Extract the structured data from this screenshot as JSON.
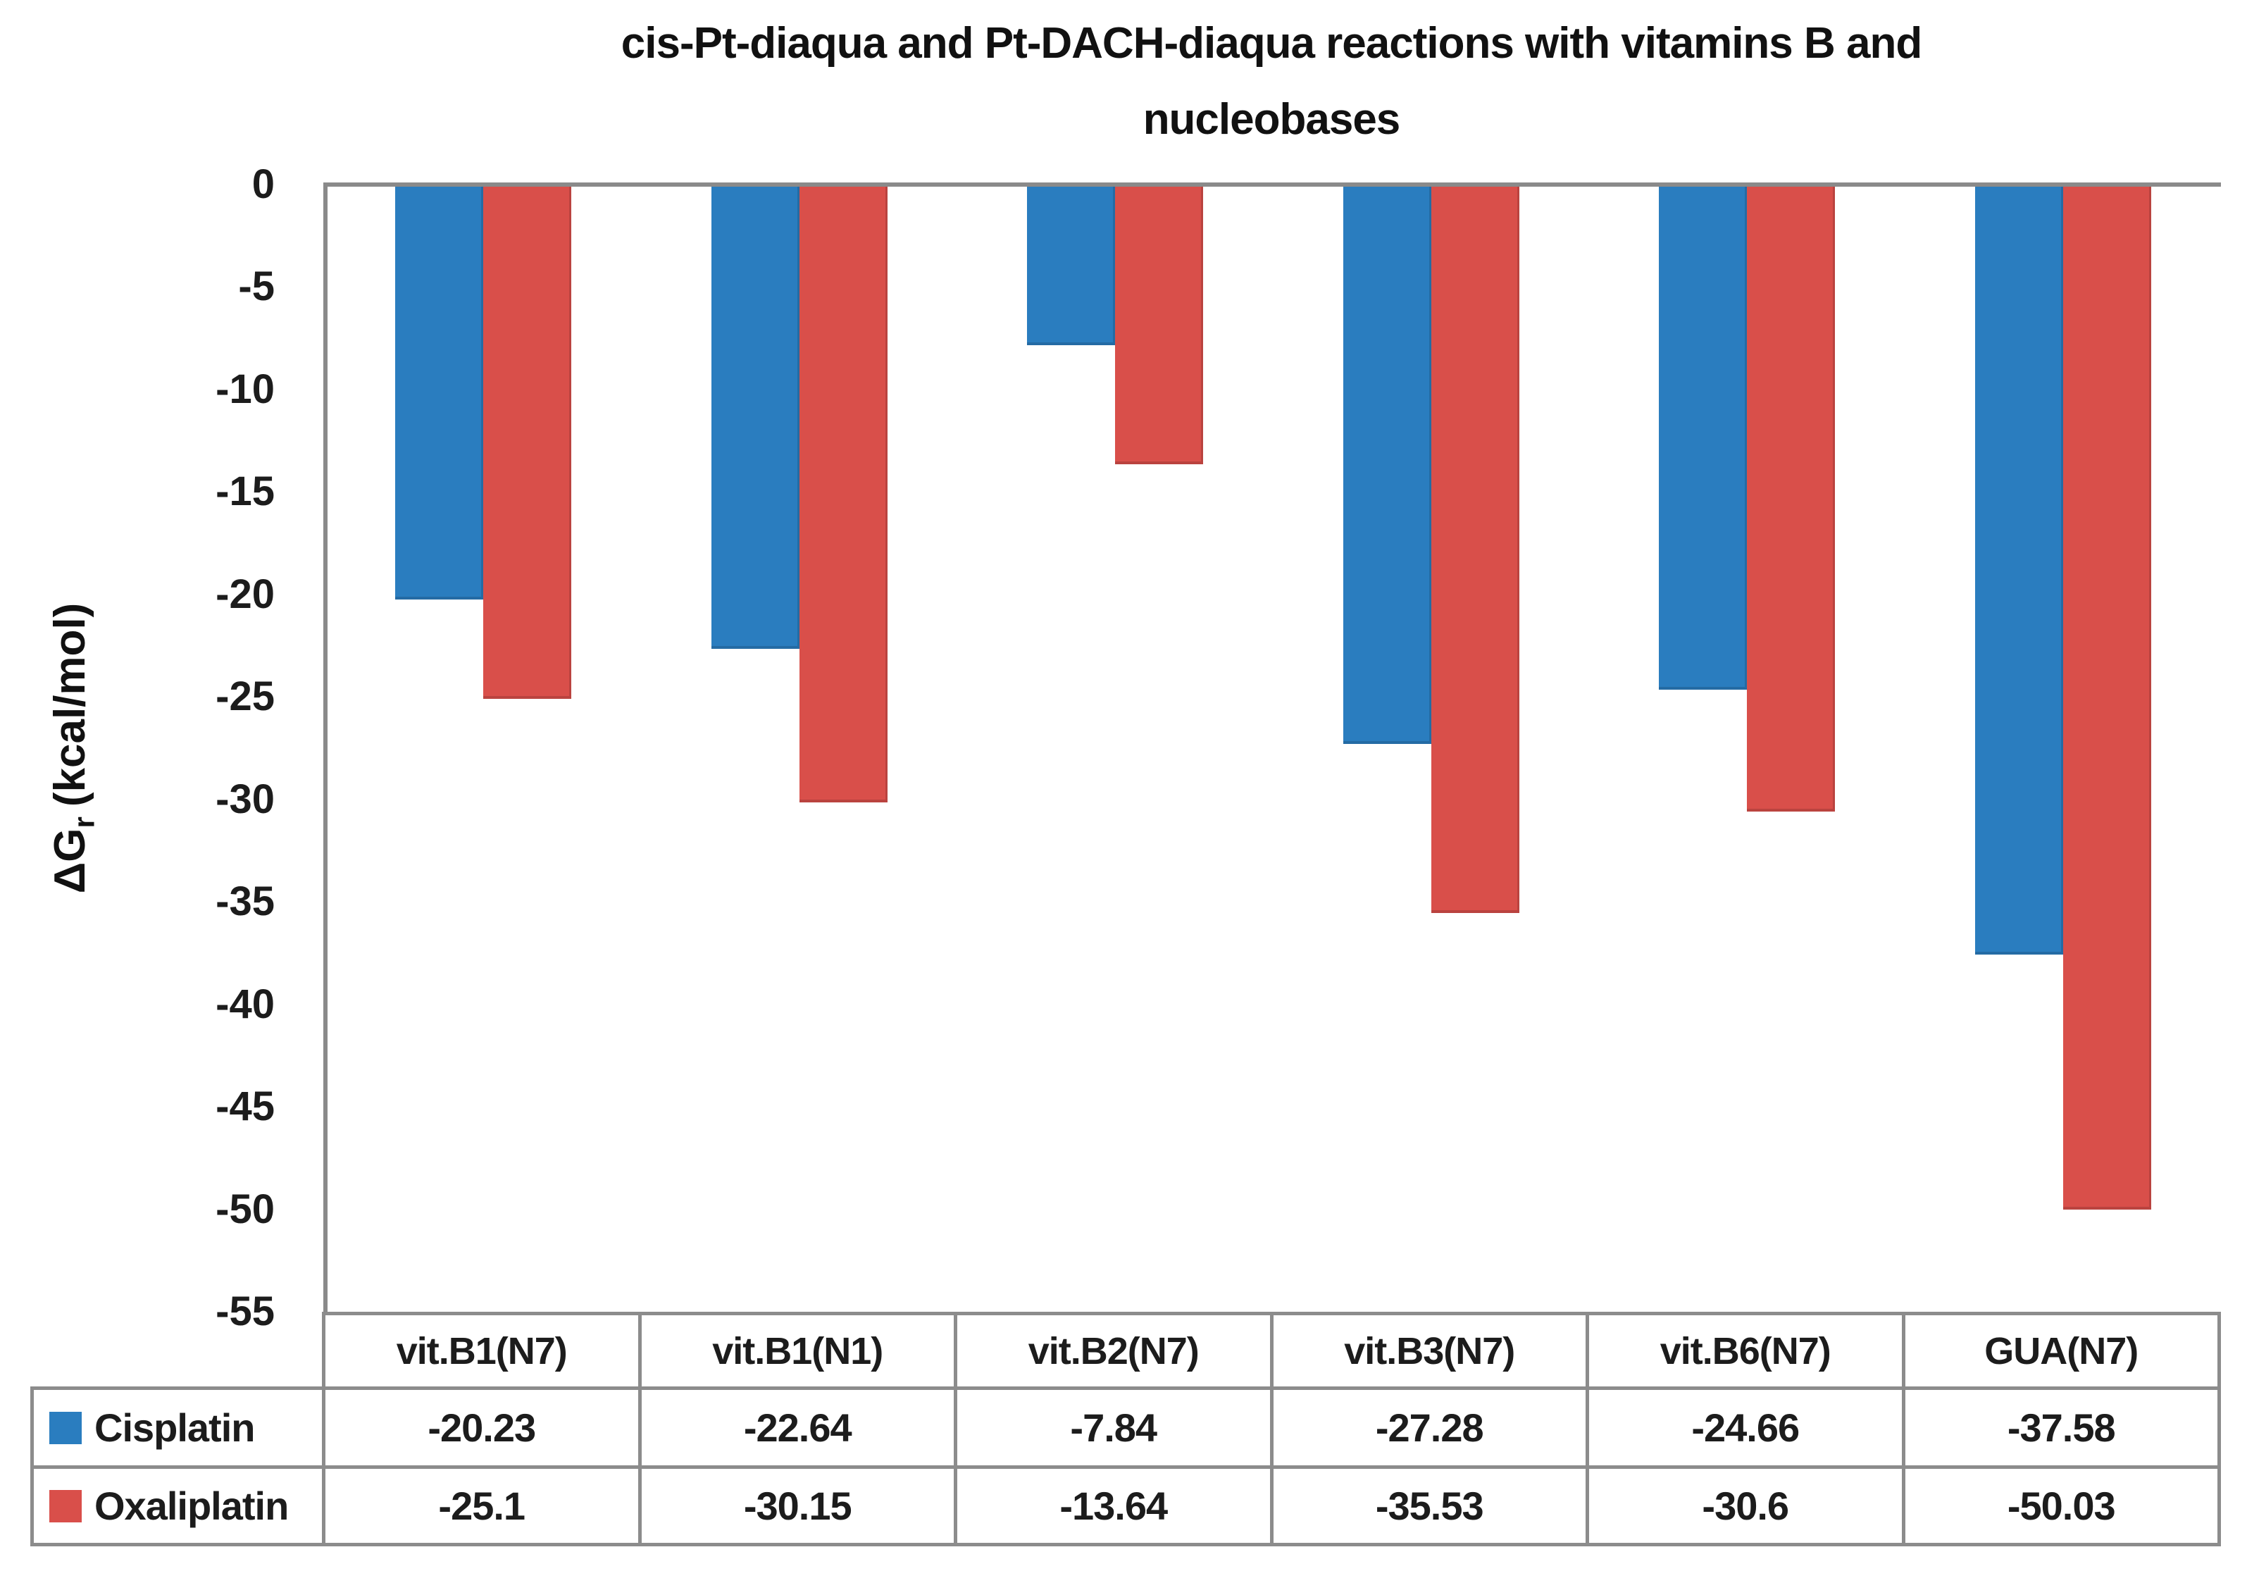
{
  "title": {
    "line1": "cis-Pt-diaqua and Pt-DACH-diaqua reactions with vitamins B and",
    "line2": "nucleobases"
  },
  "y_axis": {
    "label_main": "ΔG",
    "label_sub": "r",
    "label_units": "(kcal/mol)",
    "ticks": [
      "0",
      "-5",
      "-10",
      "-15",
      "-20",
      "-25",
      "-30",
      "-35",
      "-40",
      "-45",
      "-50",
      "-55"
    ]
  },
  "chart_data": {
    "type": "bar",
    "orientation": "vertical",
    "title": "cis-Pt-diaqua and Pt-DACH-diaqua reactions with vitamins B and nucleobases",
    "ylabel": "ΔGr (kcal/mol)",
    "ylim": [
      -55,
      0
    ],
    "ytick_interval": 5,
    "gridlines": false,
    "legend_position": "table-left",
    "categories": [
      "vit.B1(N7)",
      "vit.B1(N1)",
      "vit.B2(N7)",
      "vit.B3(N7)",
      "vit.B6(N7)",
      "GUA(N7)"
    ],
    "series": [
      {
        "name": "Cisplatin",
        "color": "#2a7dbf",
        "values": [
          -20.23,
          -22.64,
          -7.84,
          -27.28,
          -24.66,
          -37.58
        ],
        "value_labels": [
          "-20.23",
          "-22.64",
          "-7.84",
          "-27.28",
          "-24.66",
          "-37.58"
        ]
      },
      {
        "name": "Oxaliplatin",
        "color": "#d94f4a",
        "values": [
          -25.1,
          -30.15,
          -13.64,
          -35.53,
          -30.6,
          -50.03
        ],
        "value_labels": [
          "-25.1",
          "-30.15",
          "-13.64",
          "-35.53",
          "-30.6",
          "-50.03"
        ]
      }
    ]
  },
  "colors": {
    "cisplatin_blue": "#2a7dbf",
    "oxaliplatin_red": "#d94f4a",
    "axis_line": "#8a8a8a",
    "table_border": "#8c8c8c",
    "text": "#1c1c1c",
    "background": "#ffffff"
  }
}
